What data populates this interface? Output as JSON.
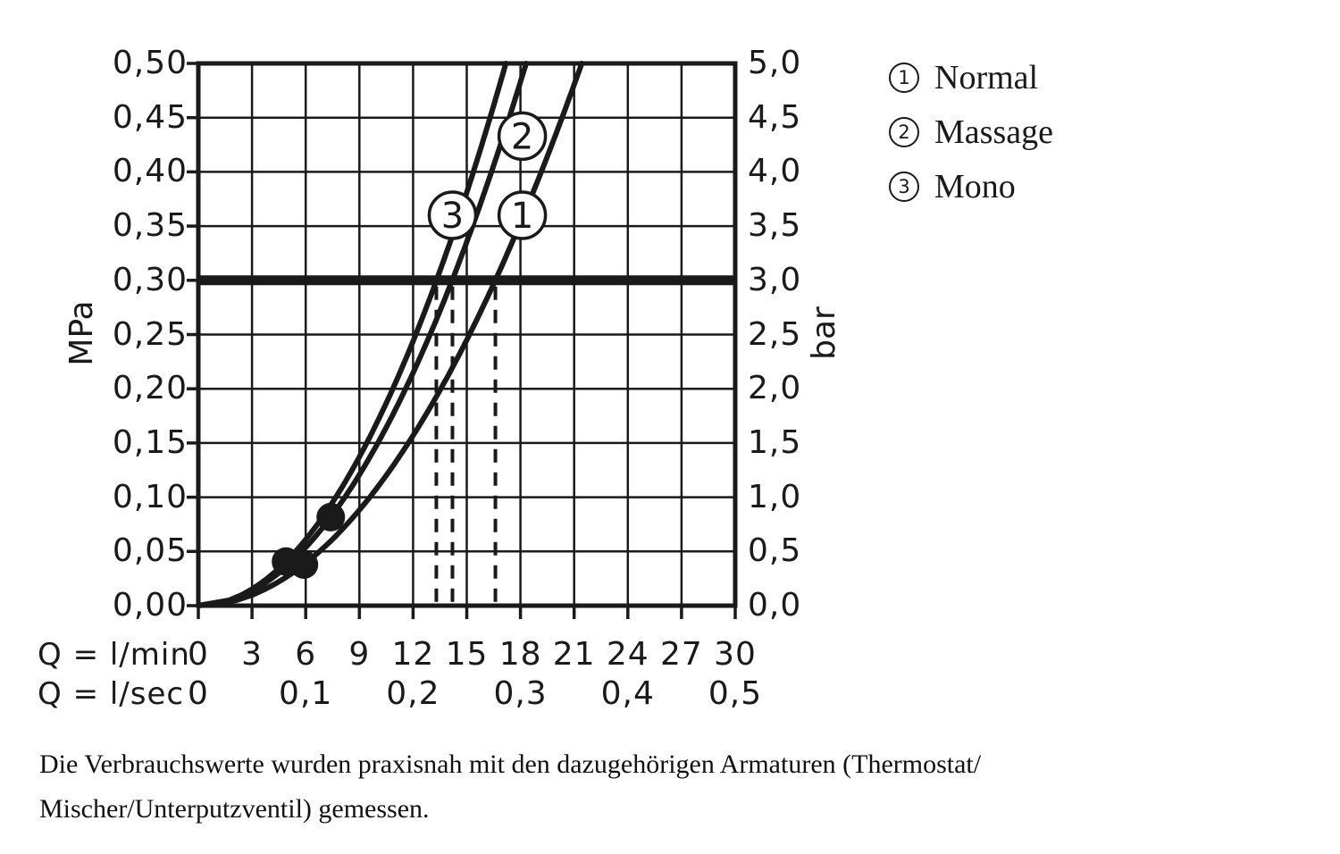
{
  "chart_data": {
    "type": "line",
    "title": "",
    "x_axis": {
      "label_lmin": "Q = l/min",
      "label_lsec": "Q = l/sec",
      "ticks_lmin": [
        "0",
        "3",
        "6",
        "9",
        "12",
        "15",
        "18",
        "21",
        "24",
        "27",
        "30"
      ],
      "ticks_lsec": [
        "0",
        "0,1",
        "0,2",
        "0,3",
        "0,4",
        "0,5"
      ],
      "range_lmin": [
        0,
        30
      ],
      "grid_step_lmin": 3
    },
    "y_axis_left": {
      "label": "MPa",
      "ticks": [
        "0,50",
        "0,45",
        "0,40",
        "0,35",
        "0,30",
        "0,25",
        "0,20",
        "0,15",
        "0,10",
        "0,05",
        "0,00"
      ],
      "range_mpa": [
        0,
        0.5
      ],
      "grid_step_mpa": 0.05
    },
    "y_axis_right": {
      "label": "bar",
      "ticks": [
        "5,0",
        "4,5",
        "4,0",
        "3,5",
        "3,0",
        "2,5",
        "2,0",
        "1,5",
        "1,0",
        "0,5",
        "0,0"
      ],
      "range_bar": [
        0,
        5
      ]
    },
    "grid": "on",
    "reference_pressure_mpa": 0.3,
    "curve_model": "Q_lmin = k * sqrt(P_MPa)",
    "series": [
      {
        "id": "1",
        "name": "Normal",
        "k": 30.3,
        "q_at_3bar_lmin": 16.6,
        "marker_q_lmin": 5.9,
        "label_pos": {
          "q": 18.1,
          "p": 0.36
        }
      },
      {
        "id": "2",
        "name": "Massage",
        "k": 25.9,
        "q_at_3bar_lmin": 14.2,
        "marker_q_lmin": 7.4,
        "label_pos": {
          "q": 18.1,
          "p": 0.433
        }
      },
      {
        "id": "3",
        "name": "Mono",
        "k": 24.3,
        "q_at_3bar_lmin": 13.3,
        "marker_q_lmin": 4.9,
        "label_pos": {
          "q": 14.2,
          "p": 0.36
        }
      }
    ],
    "dashed_drop_lines_lmin": [
      13.3,
      14.2,
      16.6
    ],
    "colors": {
      "ink": "#1a1a1a",
      "background": "#ffffff"
    }
  },
  "legend": {
    "items": [
      {
        "symbol": "1",
        "label": "Normal"
      },
      {
        "symbol": "2",
        "label": "Massage"
      },
      {
        "symbol": "3",
        "label": "Mono"
      }
    ]
  },
  "footer": {
    "lines": [
      "Die Verbrauchswerte wurden praxisnah mit den dazugehörigen Armaturen (Thermostat/",
      "Mischer/Unterputzventil) gemessen."
    ]
  }
}
